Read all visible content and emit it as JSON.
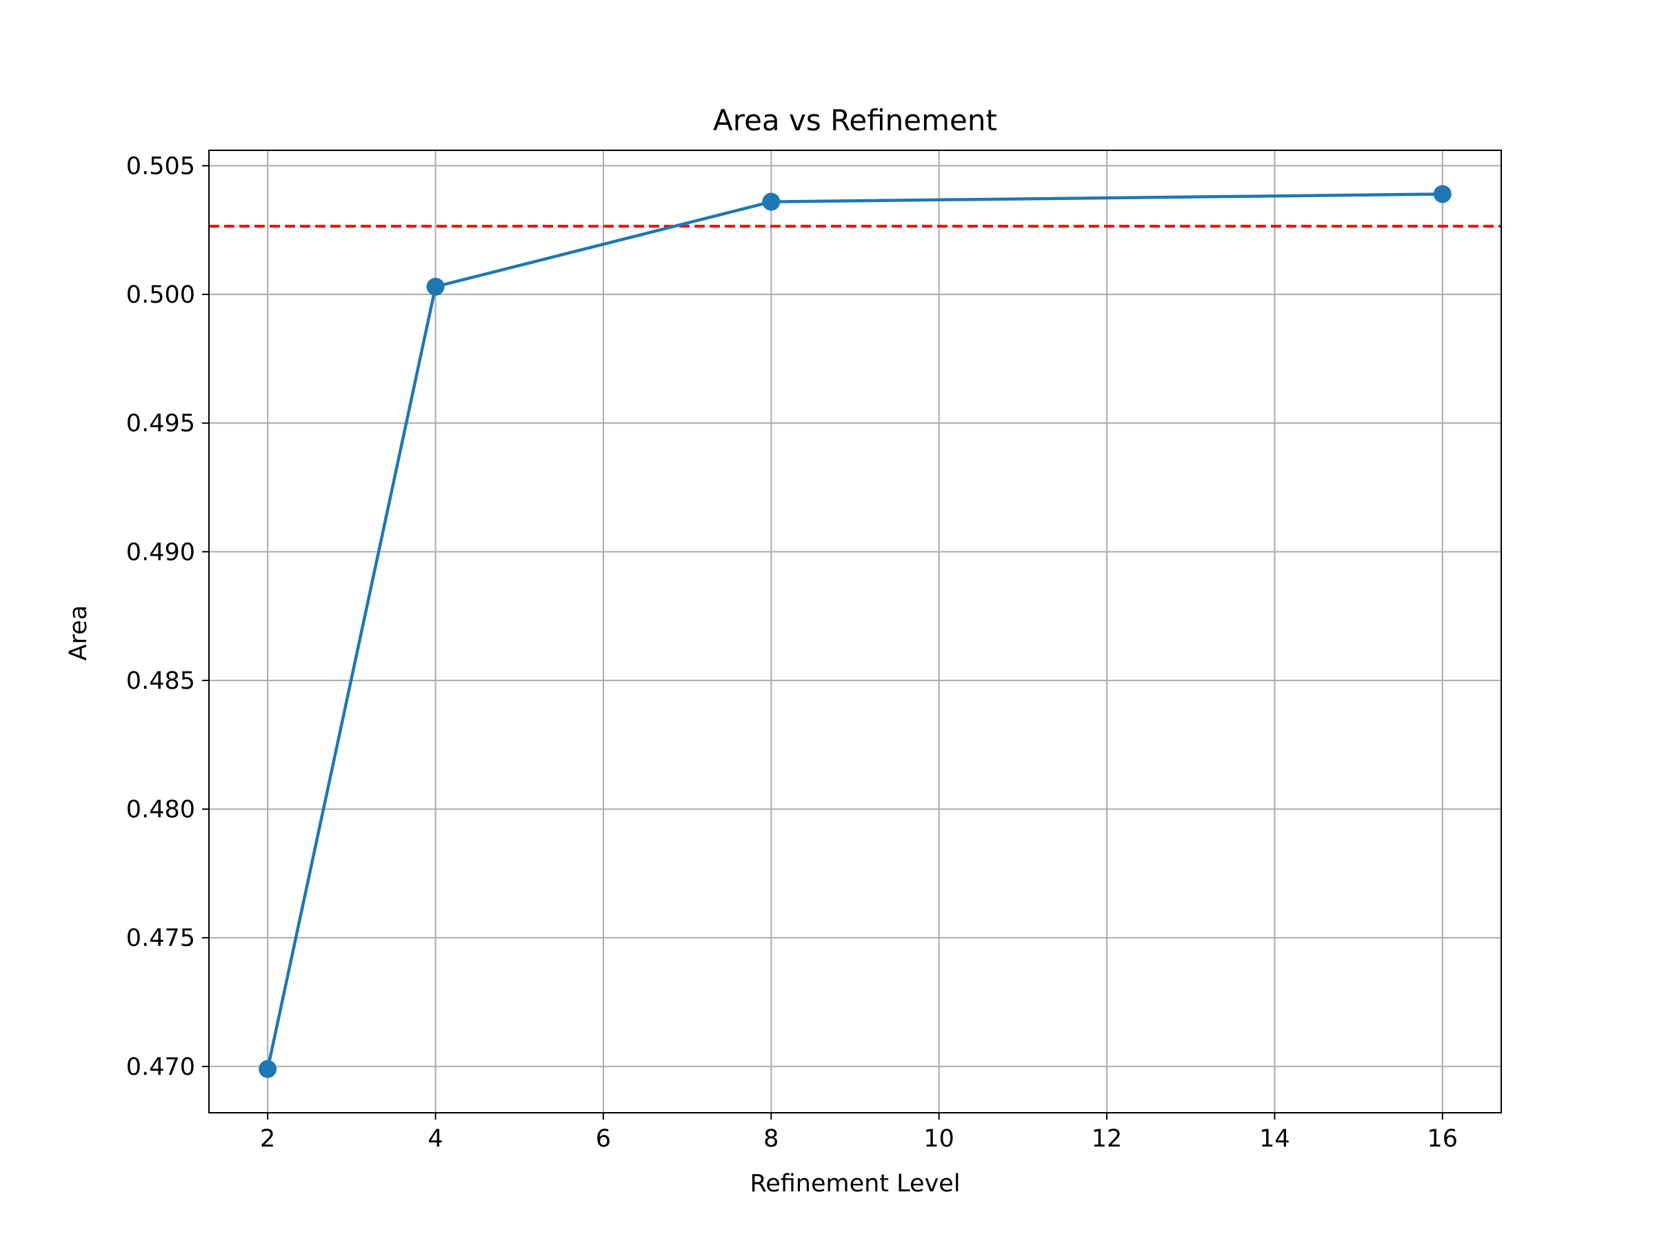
{
  "chart_data": {
    "type": "line",
    "title": "Area vs Refinement",
    "xlabel": "Refinement Level",
    "ylabel": "Area",
    "xlim": [
      1.3,
      16.7
    ],
    "ylim": [
      0.4682,
      0.5056
    ],
    "xticks": [
      2,
      4,
      6,
      8,
      10,
      12,
      14,
      16
    ],
    "xtick_labels": [
      "2",
      "4",
      "6",
      "8",
      "10",
      "12",
      "14",
      "16"
    ],
    "yticks": [
      0.47,
      0.475,
      0.48,
      0.485,
      0.49,
      0.495,
      0.5,
      0.505
    ],
    "ytick_labels": [
      "0.470",
      "0.475",
      "0.480",
      "0.485",
      "0.490",
      "0.495",
      "0.500",
      "0.505"
    ],
    "grid": true,
    "series": [
      {
        "x": [
          2,
          4,
          8,
          16
        ],
        "y": [
          0.4699,
          0.5003,
          0.5036,
          0.5039
        ],
        "color": "#1f77b4",
        "marker": "circle",
        "line_style": "solid"
      }
    ],
    "reference_lines": [
      {
        "orientation": "horizontal",
        "y": 0.50265,
        "color": "#ff0000",
        "line_style": "dashed"
      }
    ]
  }
}
